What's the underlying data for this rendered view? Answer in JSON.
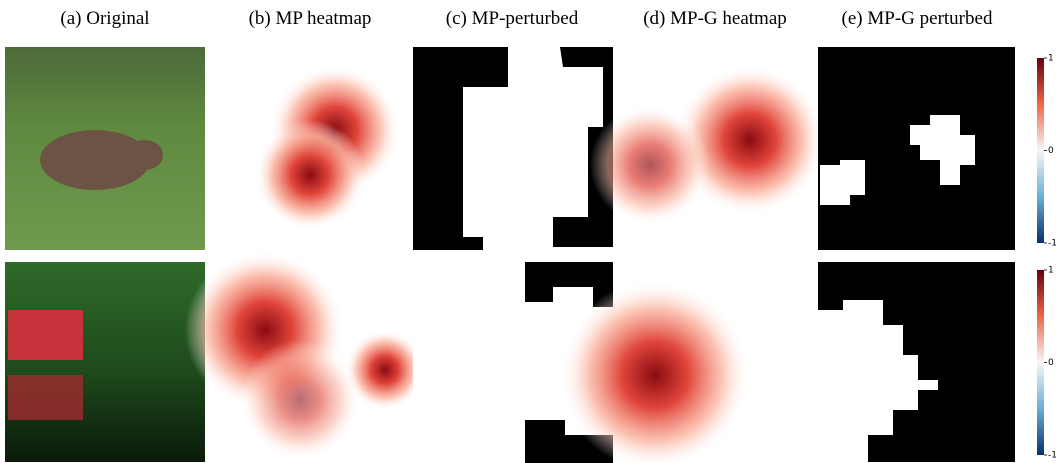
{
  "columns": [
    "(a) Original",
    "(b) MP heatmap",
    "(c) MP-perturbed",
    "(d) MP-G heatmap",
    "(e) MP-G perturbed"
  ],
  "colorbars": [
    {
      "ticks": [
        1,
        0,
        -1
      ]
    },
    {
      "ticks": [
        1,
        0,
        -1
      ]
    }
  ]
}
